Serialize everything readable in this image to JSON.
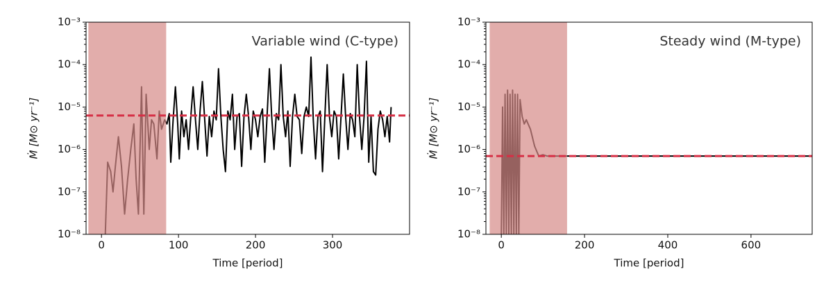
{
  "chart_data": [
    {
      "type": "line",
      "ylabel": "Ṁ [M⊙ yr⁻¹]",
      "xlabel": "Time [period]",
      "annotation": "Variable wind (C-type)",
      "log_y": true,
      "xlim": [
        -20,
        400
      ],
      "ylim": [
        1e-08,
        0.001
      ],
      "xticks": [
        0,
        100,
        200,
        300
      ],
      "yticks": [
        {
          "value": 1e-08,
          "label": "10⁻⁸"
        },
        {
          "value": 1e-07,
          "label": "10⁻⁷"
        },
        {
          "value": 1e-06,
          "label": "10⁻⁶"
        },
        {
          "value": 1e-05,
          "label": "10⁻⁵"
        },
        {
          "value": 0.0001,
          "label": "10⁻⁴"
        },
        {
          "value": 0.001,
          "label": "10⁻³"
        }
      ],
      "shade": [
        -17,
        84
      ],
      "shade_color": "#d58a87",
      "mean": 6.3e-06,
      "mean_color": "#d62f45",
      "series": [
        {
          "color": "#000000",
          "x": [
            5,
            8,
            12,
            15,
            18,
            22,
            26,
            30,
            34,
            38,
            42,
            45,
            48,
            52,
            55,
            58,
            62,
            65,
            68,
            72,
            75,
            78,
            82,
            85,
            88,
            90,
            93,
            96,
            99,
            101,
            104,
            107,
            110,
            113,
            116,
            119,
            122,
            125,
            128,
            131,
            134,
            137,
            140,
            143,
            146,
            149,
            152,
            155,
            158,
            161,
            164,
            167,
            170,
            173,
            176,
            179,
            182,
            185,
            188,
            191,
            194,
            197,
            200,
            203,
            206,
            209,
            212,
            215,
            218,
            221,
            224,
            227,
            230,
            233,
            236,
            239,
            242,
            245,
            248,
            251,
            254,
            257,
            260,
            263,
            266,
            269,
            272,
            275,
            278,
            281,
            284,
            287,
            290,
            293,
            296,
            299,
            302,
            305,
            308,
            311,
            314,
            317,
            320,
            323,
            326,
            329,
            332,
            335,
            338,
            341,
            344,
            347,
            350,
            353,
            356,
            359,
            362,
            365,
            368,
            371,
            374,
            376
          ],
          "values": [
            1e-08,
            5e-07,
            3e-07,
            1e-07,
            4e-07,
            2e-06,
            4e-07,
            3e-08,
            2e-07,
            1e-06,
            4e-06,
            2e-07,
            3e-08,
            3e-05,
            3e-08,
            2e-05,
            1e-06,
            5e-06,
            4e-06,
            6e-07,
            8e-06,
            3e-06,
            5e-06,
            4e-06,
            7e-06,
            5e-07,
            5e-06,
            3e-05,
            4e-06,
            6e-07,
            8e-06,
            2e-06,
            5e-06,
            1e-06,
            6e-06,
            3e-05,
            5e-06,
            1e-06,
            8e-06,
            4e-05,
            5e-06,
            7e-07,
            6e-06,
            2e-06,
            8e-06,
            5e-06,
            8e-05,
            6e-06,
            1e-06,
            3e-07,
            8e-06,
            5e-06,
            2e-05,
            1e-06,
            6e-06,
            7e-06,
            4e-07,
            6e-06,
            2e-05,
            6e-06,
            1e-06,
            8e-06,
            5e-06,
            2e-06,
            6e-06,
            9e-06,
            5e-07,
            6e-06,
            8e-05,
            6e-06,
            1e-06,
            7e-06,
            5e-06,
            0.0001,
            6e-06,
            2e-06,
            8e-06,
            4e-07,
            6e-06,
            2e-05,
            6e-06,
            5e-06,
            8e-07,
            6e-06,
            1e-05,
            6e-06,
            0.00015,
            5e-06,
            6e-07,
            6e-06,
            8e-06,
            3e-07,
            6e-06,
            0.0001,
            6e-06,
            2e-06,
            8e-06,
            6e-06,
            6e-07,
            6e-06,
            6e-05,
            6e-06,
            1e-06,
            7e-06,
            5e-06,
            2e-06,
            0.0001,
            6e-06,
            1e-06,
            6e-06,
            0.00012,
            5e-07,
            6e-06,
            3e-07,
            2.5e-07,
            3e-06,
            8e-06,
            5e-06,
            2e-06,
            6e-06,
            1.5e-06,
            1e-05
          ]
        }
      ]
    },
    {
      "type": "line",
      "ylabel": "Ṁ [M⊙ yr⁻¹]",
      "xlabel": "Time [period]",
      "annotation": "Steady wind (M-type)",
      "log_y": true,
      "xlim": [
        -37,
        747
      ],
      "ylim": [
        1e-08,
        0.001
      ],
      "xticks": [
        0,
        200,
        400,
        600
      ],
      "yticks": [
        {
          "value": 1e-08,
          "label": "10⁻⁸"
        },
        {
          "value": 1e-07,
          "label": "10⁻⁷"
        },
        {
          "value": 1e-06,
          "label": "10⁻⁶"
        },
        {
          "value": 1e-05,
          "label": "10⁻⁵"
        },
        {
          "value": 0.0001,
          "label": "10⁻⁴"
        },
        {
          "value": 0.001,
          "label": "10⁻³"
        }
      ],
      "shade": [
        -28,
        158
      ],
      "shade_color": "#d58a87",
      "mean": 7e-07,
      "mean_color": "#d62f45",
      "series": [
        {
          "color": "#000000",
          "x": [
            0,
            3,
            6,
            9,
            12,
            15,
            18,
            21,
            24,
            27,
            30,
            33,
            36,
            39,
            42,
            45,
            50,
            55,
            60,
            70,
            80,
            90,
            100,
            110,
            200,
            400,
            600,
            745
          ],
          "values": [
            1e-08,
            1e-05,
            1e-08,
            2e-05,
            1e-08,
            2.5e-05,
            1e-08,
            2e-05,
            1e-08,
            2.5e-05,
            1e-08,
            2e-05,
            1e-08,
            2e-05,
            1e-08,
            1.5e-05,
            6e-06,
            4e-06,
            5e-06,
            3e-06,
            1.2e-06,
            7e-07,
            7.5e-07,
            7e-07,
            7e-07,
            7e-07,
            7e-07,
            7e-07
          ]
        }
      ]
    }
  ]
}
